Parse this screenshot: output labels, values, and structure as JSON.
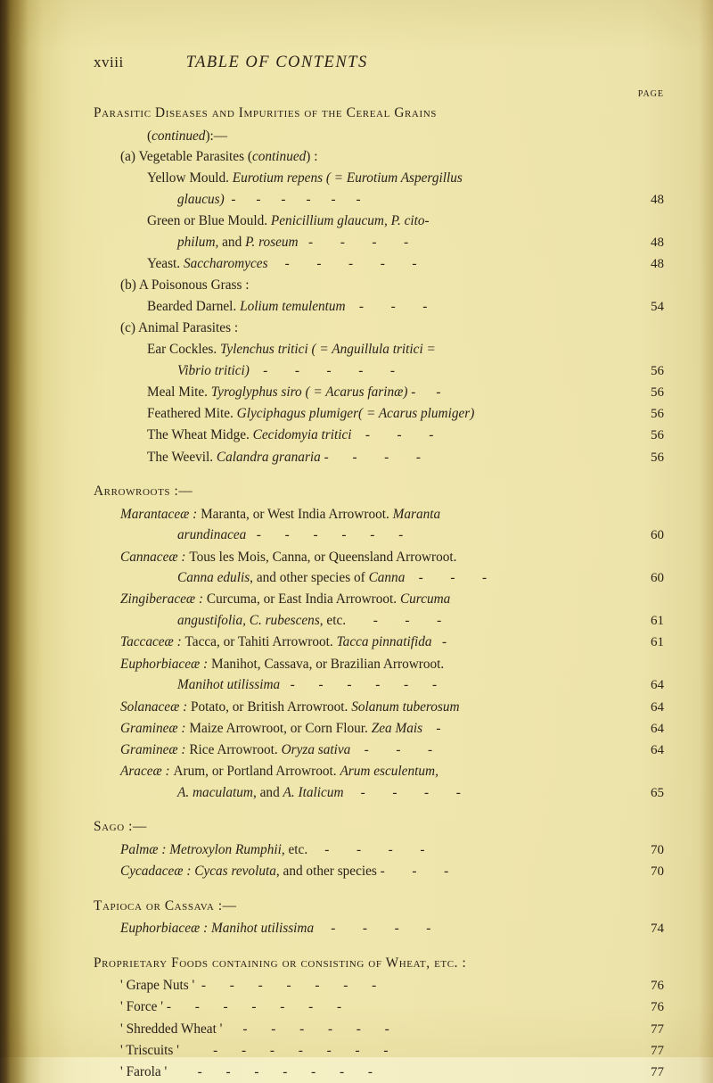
{
  "folio": "xviii",
  "running_title": "TABLE OF CONTENTS",
  "page_label": "PAGE",
  "sections": {
    "parasitic": {
      "heading_sc": "Parasitic Diseases and Impurities of the Cereal Grains",
      "continued": "(continued):—",
      "a_lead": "(a) Vegetable Parasites ",
      "a_cont": "(continued) :",
      "yellow1": "Yellow Mould.  ",
      "yellow1_it": "Eurotium repens ( = Eurotium Aspergillus",
      "yellow2_it": "glaucus)",
      "yellow_pn": "48",
      "green1": "Green or Blue Mould.   ",
      "green1_it": "Penicillium glaucum, P. cito-",
      "green2_it": "philum, ",
      "green2_plain": "and ",
      "green2_it2": "P. roseum",
      "green_pn": "48",
      "yeast": "Yeast.  ",
      "yeast_it": "Saccharomyces",
      "yeast_pn": "48",
      "b_lead": "(b) A Poisonous Grass :",
      "darnel": "Bearded Darnel.  ",
      "darnel_it": "Lolium temulentum",
      "darnel_pn": "54",
      "c_lead": "(c) Animal Parasites :",
      "ear1": "Ear Cockles.  ",
      "ear1_it": "Tylenchus tritici ( = Anguillula tritici =",
      "ear2_it": "Vibrio tritici)",
      "ear_pn": "56",
      "meal": "Meal Mite.  ",
      "meal_it": "Tyroglyphus siro ( = Acarus farinæ) -",
      "meal_pn": "56",
      "feath": "Feathered Mite.  ",
      "feath_it": "Glyciphagus plumiger( = Acarus plumiger)",
      "feath_pn": "56",
      "midge": "The Wheat Midge.  ",
      "midge_it": "Cecidomyia tritici",
      "midge_pn": "56",
      "weevil": "The Weevil.  ",
      "weevil_it": "Calandra granaria -",
      "weevil_pn": "56"
    },
    "arrow": {
      "heading_sc": "Arrowroots :—",
      "maranta1_it": "Marantaceæ : ",
      "maranta1": "Maranta, or West India Arrowroot.  ",
      "maranta1_it2": "Maranta",
      "maranta2_it": "arundinacea",
      "maranta_pn": "60",
      "canna1_it": "Cannaceæ : ",
      "canna1": "Tous les Mois, Canna, or Queensland Arrowroot.",
      "canna2_it": "Canna edulis",
      "canna2": ", and other species of ",
      "canna2_it2": "Canna",
      "canna_pn": "60",
      "zing1_it": "Zingiberaceæ : ",
      "zing1": "Curcuma, or East India Arrowroot.  ",
      "zing1_it2": "Curcuma",
      "zing2_it": "angustifolia, C. rubescens",
      "zing2": ", etc.",
      "zing_pn": "61",
      "tacca_it": "Taccaceæ : ",
      "tacca": "Tacca, or Tahiti Arrowroot.  ",
      "tacca_it2": "Tacca pinnatifida",
      "tacca_pn": "61",
      "euph1_it": "Euphorbiaceæ : ",
      "euph1": "Manihot, Cassava, or Brazilian Arrowroot.",
      "euph2_it": "Manihot utilissima",
      "euph_pn": "64",
      "solan_it": "Solanaceæ : ",
      "solan": "Potato, or British Arrowroot.  ",
      "solan_it2": "Solanum tuberosum",
      "solan_pn": "64",
      "gram1_it": "Gramineæ : ",
      "gram1": "Maize Arrowroot, or Corn Flour.  ",
      "gram1_it2": "Zea Mais",
      "gram1_pn": "64",
      "gram2_it": "Gramineæ : ",
      "gram2": "Rice Arrowroot.  ",
      "gram2_it2": "Oryza sativa",
      "gram2_pn": "64",
      "arac1_it": "Araceæ : ",
      "arac1": "Arum, or Portland Arrowroot.  ",
      "arac1_it2": "Arum esculentum,",
      "arac2_it": "A. maculatum",
      "arac2": ", and ",
      "arac2_it2": "A. Italicum",
      "arac_pn": "65"
    },
    "sago": {
      "heading_sc": "Sago :—",
      "palm_it": "Palmæ : Metroxylon Rumphii",
      "palm": ", etc.",
      "palm_pn": "70",
      "cyc_it": "Cycadaceæ : Cycas revoluta",
      "cyc": ", and other species -",
      "cyc_pn": "70"
    },
    "tapioca": {
      "heading_sc": "Tapioca or Cassava :—",
      "euph_it": "Euphorbiaceæ : Manihot utilissima",
      "euph_pn": "74"
    },
    "proprietary": {
      "heading_sc": "Proprietary Foods containing or consisting of Wheat, etc. :",
      "grape": "' Grape Nuts '",
      "grape_pn": "76",
      "force": "' Force '  -",
      "force_pn": "76",
      "shredded": "' Shredded Wheat '",
      "shredded_pn": "77",
      "triscuits": "' Triscuits '",
      "triscuits_pn": "77",
      "farola": "' Farola '",
      "farola_pn": "77"
    }
  }
}
